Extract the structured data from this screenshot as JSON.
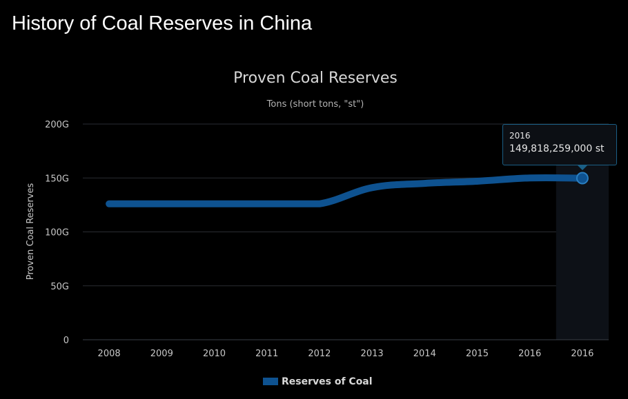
{
  "page": {
    "heading": "History of Coal Reserves in China"
  },
  "colors": {
    "background": "#000000",
    "series": "#0e5290",
    "grid": "#2a2d33",
    "text": "#c8c8c8",
    "hover_band": "#0d1117"
  },
  "chart_data": {
    "type": "line",
    "title": "Proven Coal Reserves",
    "subtitle": "Tons (short tons, \"st\")",
    "ylabel": "Proven Coal Reserves",
    "xlabel": "",
    "categories": [
      "2008",
      "2009",
      "2010",
      "2011",
      "2012",
      "2013",
      "2014",
      "2015",
      "2016",
      "2016"
    ],
    "series": [
      {
        "name": "Reserves of Coal",
        "values": [
          126000000000,
          126000000000,
          126000000000,
          126000000000,
          126000000000,
          141000000000,
          145000000000,
          147000000000,
          150000000000,
          149818259000
        ]
      }
    ],
    "ylim": [
      0,
      200000000000
    ],
    "yticks": [
      0,
      50000000000,
      100000000000,
      150000000000,
      200000000000
    ],
    "ytick_labels": [
      "0",
      "50G",
      "100G",
      "150G",
      "200G"
    ],
    "grid": true,
    "legend_position": "bottom-center",
    "tooltip": {
      "x": "2016",
      "value": "149,818,259,000 st"
    }
  }
}
